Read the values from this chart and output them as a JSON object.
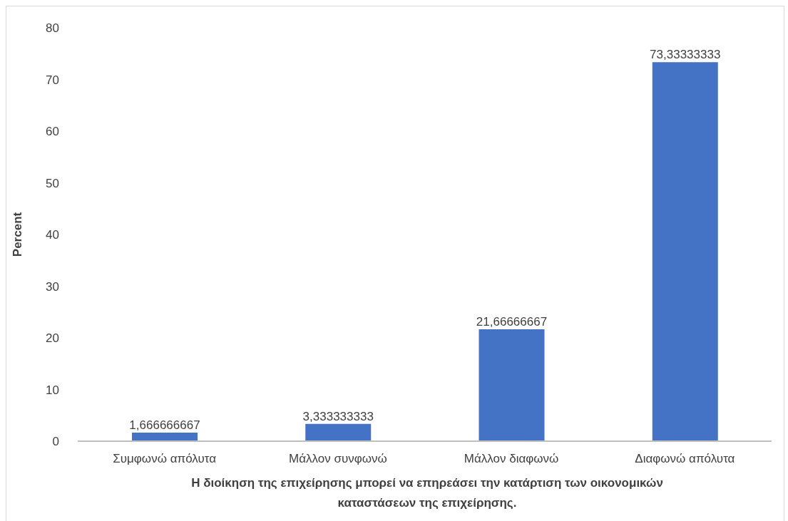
{
  "chart_data": {
    "type": "bar",
    "xlabel": "Η διοίκηση της επιχείρησης μπορεί να επηρεάσει την κατάρτιση των οικονομικών καταστάσεων της επιχείρησης.",
    "ylabel": "Percent",
    "categories": [
      "Συμφωνώ απόλυτα",
      "Μάλλον συνφωνώ",
      "Μάλλον διαφωνώ",
      "Διαφωνώ απόλυτα"
    ],
    "values": [
      1.666666667,
      3.333333333,
      21.66666667,
      73.33333333
    ],
    "value_labels": [
      "1,666666667",
      "3,333333333",
      "21,66666667",
      "73,33333333"
    ],
    "color": "#4472c4",
    "ylim": [
      0,
      80
    ],
    "yticks": [
      0,
      10,
      20,
      30,
      40,
      50,
      60,
      70,
      80
    ],
    "grid": false,
    "legend": false
  }
}
